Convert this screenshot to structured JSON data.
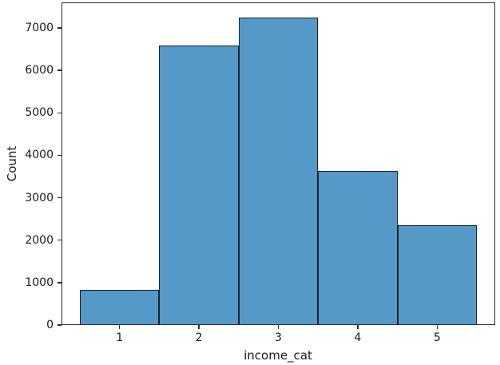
{
  "chart_data": {
    "type": "bar",
    "subtype": "histogram",
    "title": "",
    "xlabel": "income_cat",
    "ylabel": "Count",
    "categories": [
      "1",
      "2",
      "3",
      "4",
      "5"
    ],
    "values": [
      820,
      6580,
      7240,
      3640,
      2360
    ],
    "yticks": [
      0,
      1000,
      2000,
      3000,
      4000,
      5000,
      6000,
      7000
    ],
    "ylim": [
      0,
      7600
    ],
    "xlim": [
      0.27,
      5.73
    ],
    "grid": false,
    "legend": "none",
    "colors": {
      "bar_fill": "#5599c8",
      "bar_edge": "#1a1f26",
      "spine": "#2a2a2a",
      "text": "#1a1a1a",
      "background": "#ffffff"
    }
  }
}
